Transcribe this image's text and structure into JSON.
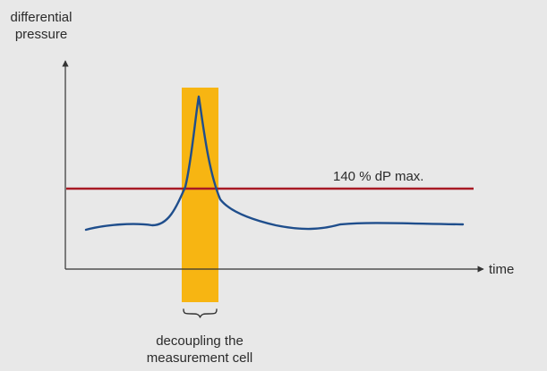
{
  "diagram": {
    "y_axis_label": [
      "differential",
      "pressure"
    ],
    "x_axis_label": "time",
    "threshold_label": "140 % dP max.",
    "band_label": [
      "decoupling the",
      "measurement cell"
    ]
  },
  "colors": {
    "background": "#e8e8e8",
    "axis": "#333333",
    "curve": "#1f4e8c",
    "threshold": "#a81a24",
    "band": "#f7b512"
  }
}
